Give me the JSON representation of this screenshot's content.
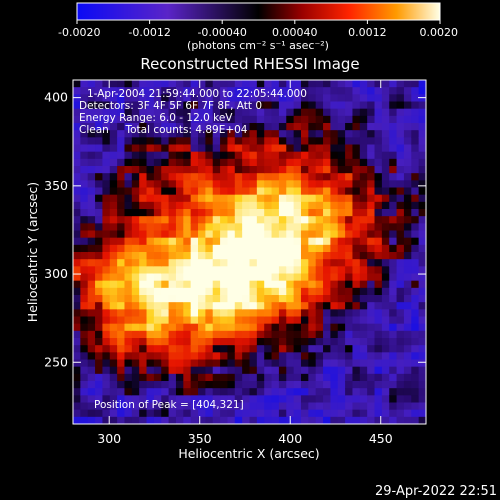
{
  "chart_data": {
    "type": "heatmap",
    "title": "Reconstructed RHESSI Image",
    "xlabel": "Heliocentric X (arcsec)",
    "ylabel": "Heliocentric Y (arcsec)",
    "xlim": [
      280,
      475
    ],
    "ylim": [
      215,
      410
    ],
    "xticks": [
      300,
      350,
      400,
      450
    ],
    "yticks": [
      250,
      300,
      350,
      400
    ],
    "colorbar": {
      "range": [
        -0.002,
        0.002
      ],
      "ticks": [
        "-0.0020",
        "-0.0012",
        "-0.00040",
        "0.00040",
        "0.0012",
        "0.0020"
      ],
      "tick_values": [
        -0.002,
        -0.0012,
        -0.0004,
        0.0004,
        0.0012,
        0.002
      ],
      "units_label": "(photons cm⁻² s⁻¹ asec⁻²)"
    },
    "annotations": [
      "1-Apr-2004 21:59:44.000 to 22:05:44.000",
      "Detectors: 3F 4F 5F 6F 7F 8F, Att 0",
      "Energy Range: 6.0 - 12.0 keV",
      "Clean     Total counts: 4.89E+04"
    ],
    "peak_label": "Position of Peak = [404,321]",
    "peak": [
      404,
      321
    ],
    "grid": false
  },
  "footer_timestamp": "29-Apr-2022 22:51"
}
